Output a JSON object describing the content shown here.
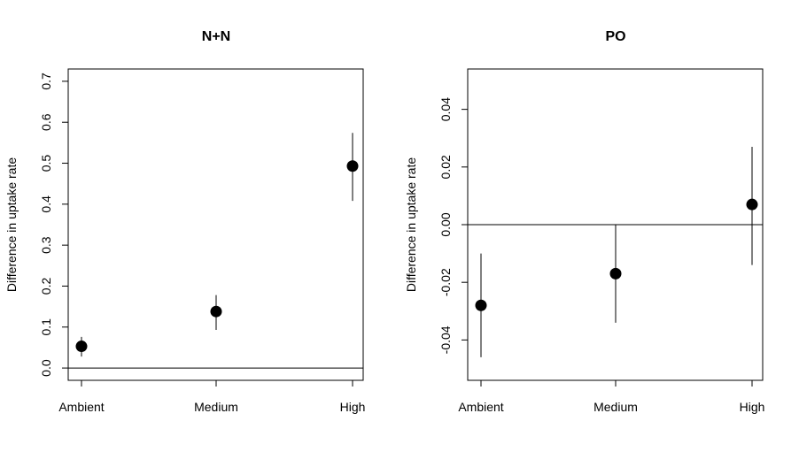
{
  "chart_data": [
    {
      "type": "scatter",
      "title": "N+N",
      "xlabel": "",
      "ylabel": "Difference in uptake rate",
      "categories": [
        "Ambient",
        "Medium",
        "High"
      ],
      "values": [
        0.053,
        0.138,
        0.493
      ],
      "error_low": [
        0.028,
        0.093,
        0.408
      ],
      "error_high": [
        0.076,
        0.178,
        0.574
      ],
      "ylim": [
        -0.03,
        0.73
      ],
      "yticks": [
        0.0,
        0.1,
        0.2,
        0.3,
        0.4,
        0.5,
        0.6,
        0.7
      ],
      "ytick_labels": [
        "0.0",
        "0.1",
        "0.2",
        "0.3",
        "0.4",
        "0.5",
        "0.6",
        "0.7"
      ],
      "reference_line": 0,
      "grid": false
    },
    {
      "type": "scatter",
      "title": "PO",
      "xlabel": "",
      "ylabel": "Difference in uptake rate",
      "categories": [
        "Ambient",
        "Medium",
        "High"
      ],
      "values": [
        -0.028,
        -0.017,
        0.007
      ],
      "error_low": [
        -0.046,
        -0.034,
        -0.014
      ],
      "error_high": [
        -0.01,
        0.0,
        0.027
      ],
      "ylim": [
        -0.054,
        0.054
      ],
      "yticks": [
        -0.04,
        -0.02,
        0.0,
        0.02,
        0.04
      ],
      "ytick_labels": [
        "-0.04",
        "-0.02",
        "0.00",
        "0.02",
        "0.04"
      ],
      "reference_line": 0,
      "grid": false
    }
  ]
}
